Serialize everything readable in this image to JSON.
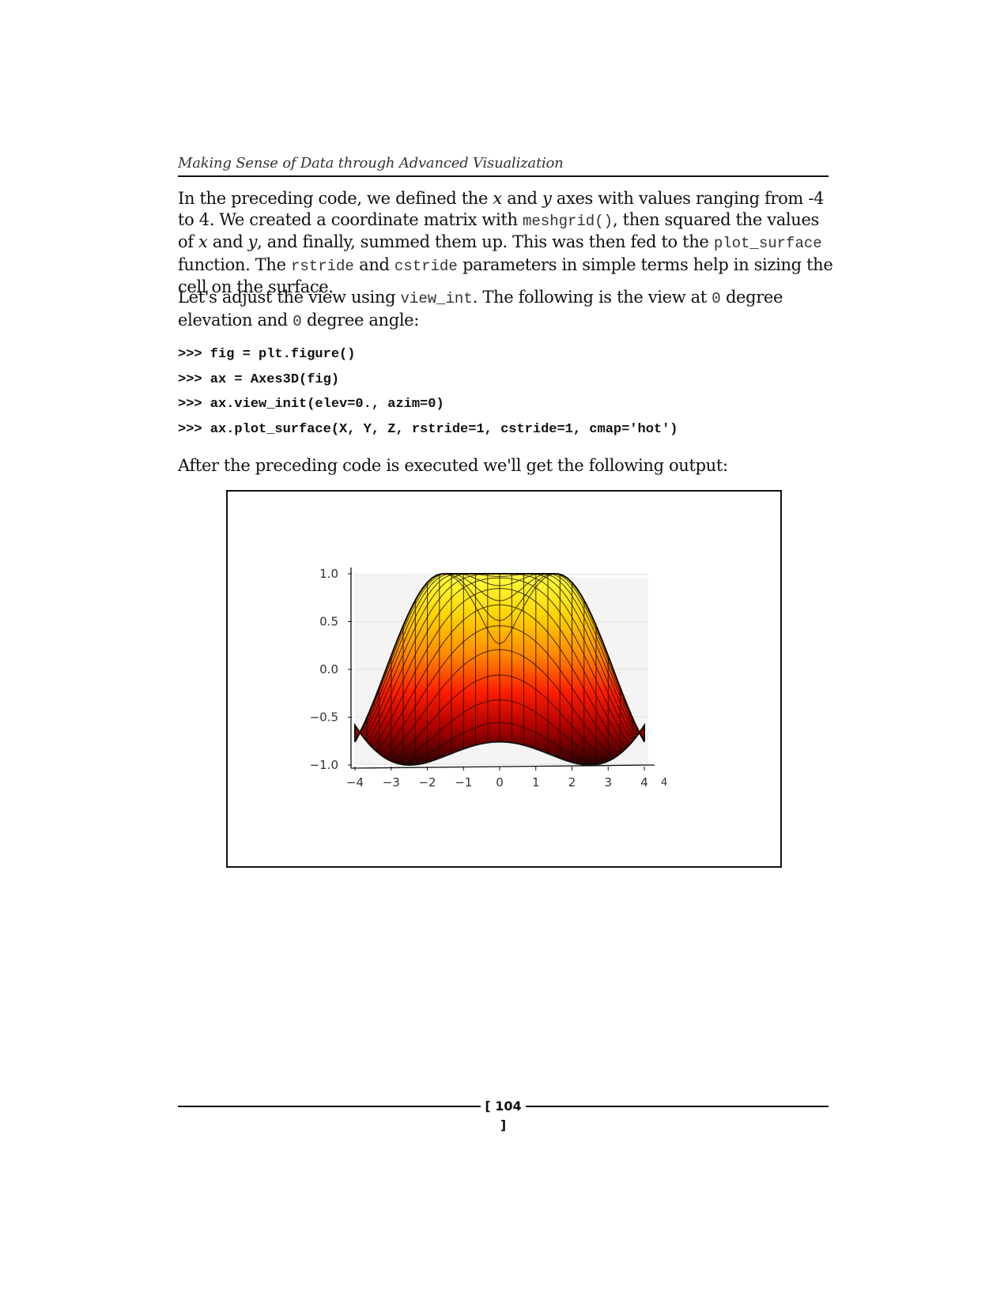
{
  "header": {
    "running_title": "Making Sense of Data through Advanced Visualization"
  },
  "body": {
    "p1": {
      "a": "In the preceding code, we defined the ",
      "x": "x",
      "b": " and ",
      "y": "y",
      "c": " axes with values ranging from -4 to 4. We created a coordinate matrix with ",
      "code1": "meshgrid()",
      "d": ", then squared the values of ",
      "x2": "x",
      "e": " and ",
      "y2": "y",
      "f": ", and finally, summed them up. This was then fed to the ",
      "code2": "plot_surface",
      "g": " function. The ",
      "code3": "rstride",
      "h": " and ",
      "code4": "cstride",
      "i": " parameters in simple terms help in sizing the cell on the surface."
    },
    "p2": {
      "a": "Let's adjust the view using ",
      "code1": "view_int",
      "b": ". The following is the view at ",
      "code2": "0",
      "c": " degree elevation and ",
      "code3": "0",
      "d": " degree angle:"
    },
    "code_lines": [
      ">>> fig = plt.figure()",
      ">>> ax = Axes3D(fig)",
      ">>> ax.view_init(elev=0., azim=0)",
      ">>> ax.plot_surface(X, Y, Z, rstride=1, cstride=1, cmap='hot')"
    ],
    "p3": "After the preceding code is executed we'll get the following output:"
  },
  "figure": {
    "x_ticks": [
      "−4",
      "−3",
      "−2",
      "−1",
      "0",
      "1",
      "2",
      "3",
      "4"
    ],
    "y_ticks": [
      "1.0",
      "0.5",
      "0.0",
      "−0.5",
      "−1.0"
    ],
    "corner_label": "4",
    "colors": {
      "dark": "#3a0000",
      "red": "#e01000",
      "orange": "#ff8a00",
      "yellow": "#ffff30",
      "grid": "#111111"
    }
  },
  "footer": {
    "page_number": "[ 104 ]"
  }
}
